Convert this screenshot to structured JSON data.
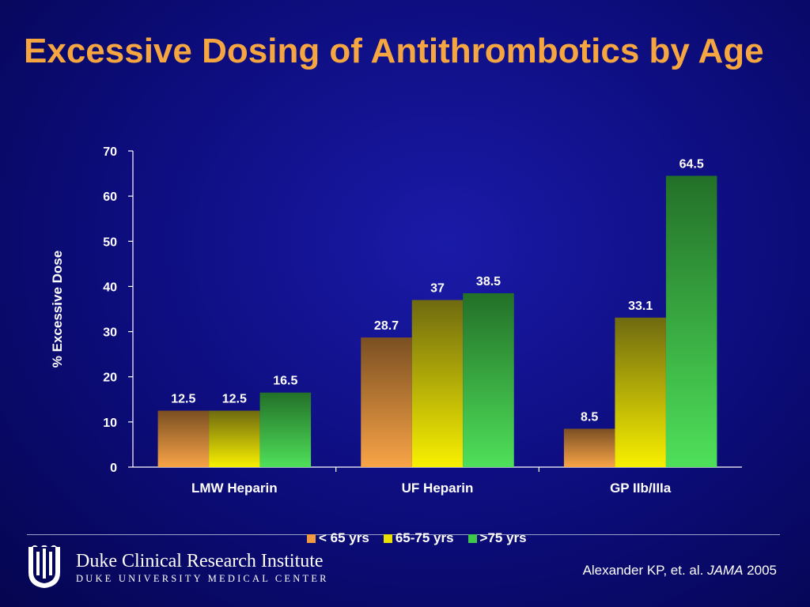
{
  "slide": {
    "title": "Excessive Dosing of Antithrombotics by Age"
  },
  "chart_data": {
    "type": "bar",
    "title": "",
    "xlabel": "",
    "ylabel": "% Excessive Dose",
    "ylim": [
      0,
      70
    ],
    "yticks": [
      0,
      10,
      20,
      30,
      40,
      50,
      60,
      70
    ],
    "categories": [
      "LMW Heparin",
      "UF Heparin",
      "GP IIb/IIIa"
    ],
    "series": [
      {
        "name": "< 65 yrs",
        "values": [
          12.5,
          28.7,
          8.5
        ],
        "labels": [
          "12.5",
          "28.7",
          "8.5"
        ],
        "color_top": "#7a4f22",
        "color_bottom": "#f9a447"
      },
      {
        "name": "65-75 yrs",
        "values": [
          12.5,
          37,
          33.1
        ],
        "labels": [
          "12.5",
          "37",
          "33.1"
        ],
        "color_top": "#6f6a10",
        "color_bottom": "#f8f000"
      },
      {
        "name": ">75 yrs",
        "values": [
          16.5,
          38.5,
          64.5
        ],
        "labels": [
          "16.5",
          "38.5",
          "64.5"
        ],
        "color_top": "#237028",
        "color_bottom": "#4fe05a"
      }
    ],
    "grid": false,
    "legend_position": "bottom"
  },
  "legend": {
    "items": [
      {
        "label": "< 65 yrs",
        "color": "#f29a40"
      },
      {
        "label": "65-75 yrs",
        "color": "#e8e000"
      },
      {
        "label": ">75 yrs",
        "color": "#3fc84a"
      }
    ]
  },
  "footer": {
    "logo_line1": "Duke Clinical Research Institute",
    "logo_line2": "DUKE UNIVERSITY MEDICAL CENTER",
    "citation_author": "Alexander KP, et. al.",
    "citation_journal": "JAMA",
    "citation_year": "2005"
  },
  "colors": {
    "title": "#f5a640",
    "background": "#0c0c7a",
    "text": "#ffffff"
  }
}
